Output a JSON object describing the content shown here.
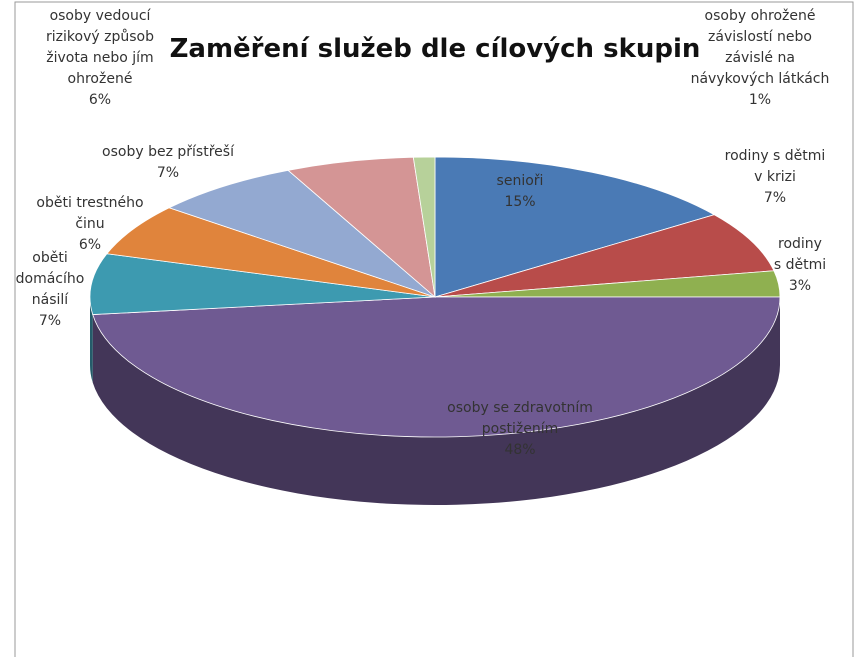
{
  "chart_data": {
    "type": "pie3d",
    "title": "Zaměření služeb dle cílových skupin",
    "categories": [
      "senioři",
      "rodiny s dětmi v krizi",
      "rodiny s dětmi",
      "osoby se zdravotním postižením",
      "oběti domácího násilí",
      "oběti trestného činu",
      "osoby bez přístřeší",
      "osoby vedoucí rizikový způsob života nebo jím ohrožené",
      "osoby ohrožené závislostí nebo závislé na návykových látkách"
    ],
    "values": [
      15,
      7,
      3,
      48,
      7,
      6,
      7,
      6,
      1
    ],
    "value_labels": [
      "15%",
      "7%",
      "3%",
      "48%",
      "7%",
      "6%",
      "7%",
      "6%",
      "1%"
    ],
    "colors": [
      "#4a7ab5",
      "#b84c4a",
      "#8fb050",
      "#6f5a92",
      "#3d9ab0",
      "#e0843c",
      "#93a9d1",
      "#d49595",
      "#b7d19a"
    ]
  }
}
